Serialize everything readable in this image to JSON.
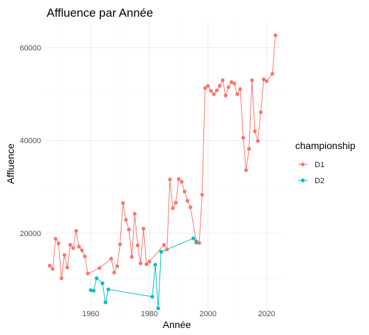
{
  "chart_data": {
    "type": "line",
    "title": "Affluence par Année",
    "xlabel": "Année",
    "ylabel": "Affluence",
    "xlim": [
      1944,
      2025
    ],
    "ylim": [
      1500,
      65500
    ],
    "x_ticks": [
      1960,
      1980,
      2000,
      2020
    ],
    "y_ticks": [
      20000,
      40000,
      60000
    ],
    "grid": true,
    "legend": {
      "title": "championship",
      "position": "right"
    },
    "series": [
      {
        "name": "D1",
        "color": "#F8766D",
        "points": [
          [
            1946,
            13000
          ],
          [
            1947,
            12300
          ],
          [
            1948,
            18800
          ],
          [
            1949,
            17800
          ],
          [
            1950,
            10300
          ],
          [
            1951,
            15300
          ],
          [
            1952,
            12600
          ],
          [
            1953,
            17500
          ],
          [
            1954,
            16800
          ],
          [
            1955,
            20500
          ],
          [
            1956,
            17100
          ],
          [
            1957,
            16300
          ],
          [
            1958,
            15000
          ],
          [
            1959,
            11300
          ],
          [
            1963,
            12500
          ],
          [
            1967,
            14500
          ],
          [
            1968,
            11500
          ],
          [
            1969,
            12900
          ],
          [
            1970,
            17600
          ],
          [
            1971,
            26500
          ],
          [
            1972,
            22900
          ],
          [
            1973,
            20800
          ],
          [
            1974,
            14900
          ],
          [
            1975,
            24200
          ],
          [
            1976,
            17400
          ],
          [
            1977,
            13500
          ],
          [
            1978,
            21000
          ],
          [
            1979,
            13300
          ],
          [
            1980,
            13900
          ],
          [
            1985,
            17500
          ],
          [
            1986,
            16500
          ],
          [
            1987,
            31600
          ],
          [
            1988,
            25400
          ],
          [
            1989,
            26600
          ],
          [
            1990,
            31700
          ],
          [
            1991,
            31100
          ],
          [
            1992,
            29000
          ],
          [
            1993,
            27000
          ],
          [
            1994,
            25600
          ],
          [
            1996,
            18300
          ],
          [
            1997,
            17900
          ],
          [
            1998,
            28300
          ],
          [
            1999,
            51300
          ],
          [
            2000,
            51800
          ],
          [
            2001,
            50700
          ],
          [
            2002,
            50000
          ],
          [
            2003,
            50800
          ],
          [
            2004,
            51800
          ],
          [
            2005,
            53000
          ],
          [
            2006,
            49700
          ],
          [
            2007,
            51500
          ],
          [
            2008,
            52600
          ],
          [
            2009,
            52300
          ],
          [
            2010,
            50000
          ],
          [
            2011,
            51100
          ],
          [
            2012,
            40600
          ],
          [
            2013,
            33600
          ],
          [
            2014,
            38200
          ],
          [
            2015,
            53000
          ],
          [
            2016,
            42000
          ],
          [
            2017,
            39900
          ],
          [
            2018,
            46100
          ],
          [
            2019,
            53200
          ],
          [
            2020,
            52800
          ],
          [
            2022,
            54400
          ],
          [
            2023,
            62700
          ]
        ]
      },
      {
        "name": "D2",
        "color": "#00BFC4",
        "points": [
          [
            1960,
            7700
          ],
          [
            1961,
            7600
          ],
          [
            1962,
            10300
          ],
          [
            1964,
            9200
          ],
          [
            1965,
            5100
          ],
          [
            1966,
            7900
          ],
          [
            1981,
            6300
          ],
          [
            1982,
            13200
          ],
          [
            1983,
            3800
          ],
          [
            1984,
            16000
          ],
          [
            1995,
            18900
          ],
          [
            1996,
            18000
          ]
        ]
      }
    ]
  }
}
